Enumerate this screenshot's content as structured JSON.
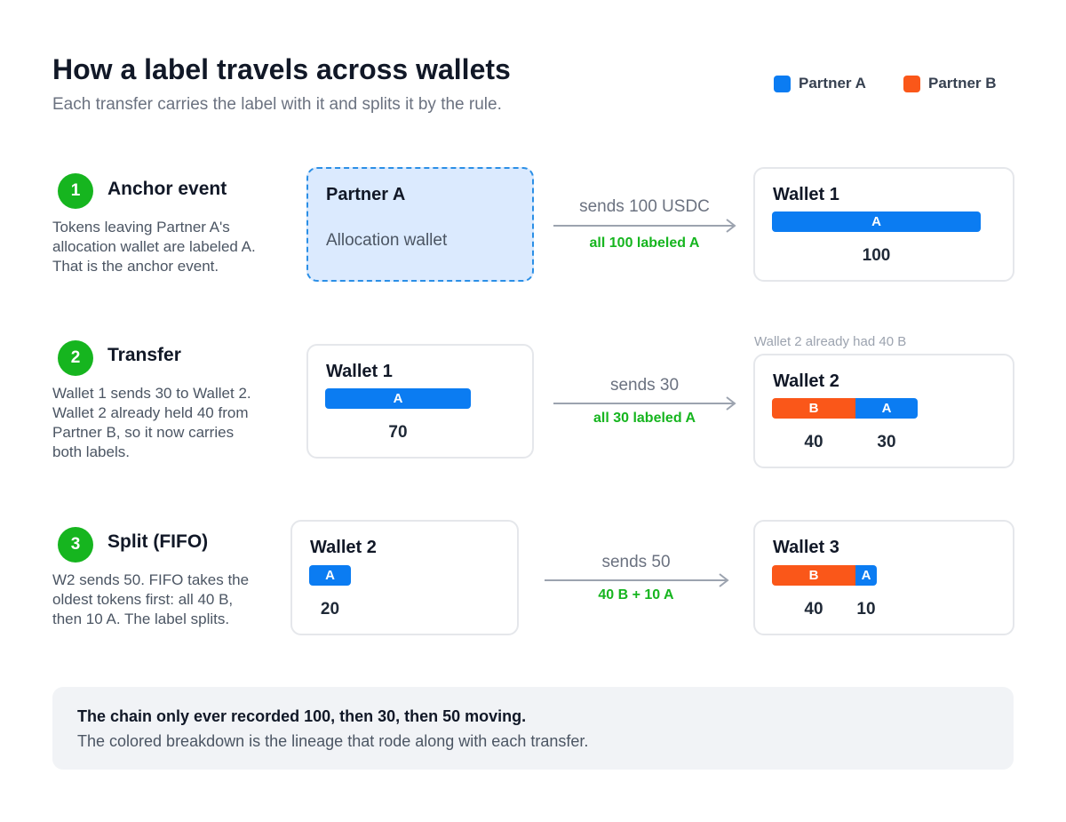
{
  "header": {
    "title": "How a label travels across wallets",
    "subtitle": "Each transfer carries the label with it and splits it by the rule."
  },
  "legend": [
    {
      "label": "Partner A",
      "color": "#0b7cf2"
    },
    {
      "label": "Partner B",
      "color": "#fa5719"
    }
  ],
  "colors": {
    "label_a": "#0b7cf2",
    "label_b": "#fa5719",
    "step_badge": "#16b51f",
    "arrow": "#9ca3af"
  },
  "steps": [
    {
      "number": "1",
      "title": "Anchor event",
      "description": [
        "Tokens leaving Partner A's",
        "allocation wallet are labeled A.",
        "That is the anchor event."
      ],
      "source": {
        "title": "Partner A",
        "subtitle": "Allocation wallet"
      },
      "transfer": {
        "label": "sends 100 USDC",
        "detail": "all 100 labeled A"
      },
      "destination": {
        "title": "Wallet 1",
        "segments": [
          {
            "label": "A",
            "amount": "100"
          }
        ]
      }
    },
    {
      "number": "2",
      "title": "Transfer",
      "description": [
        "Wallet 1 sends 30 to Wallet 2.",
        "Wallet 2 already held 40 from",
        "Partner B, so it now carries",
        "both labels."
      ],
      "source": {
        "title": "Wallet 1",
        "segments": [
          {
            "label": "A",
            "amount": "70"
          }
        ]
      },
      "transfer": {
        "label": "sends 30",
        "detail": "all 30 labeled A"
      },
      "destination_note": "Wallet 2 already had 40 B",
      "destination": {
        "title": "Wallet 2",
        "segments": [
          {
            "label": "B",
            "amount": "40"
          },
          {
            "label": "A",
            "amount": "30"
          }
        ]
      }
    },
    {
      "number": "3",
      "title": "Split (FIFO)",
      "description": [
        "W2 sends 50. FIFO takes the",
        "oldest tokens first: all 40 B,",
        "then 10 A. The label splits."
      ],
      "source": {
        "title": "Wallet 2",
        "segments": [
          {
            "label": "A",
            "amount": "20"
          }
        ]
      },
      "transfer": {
        "label": "sends 50",
        "detail": "40 B + 10 A"
      },
      "destination": {
        "title": "Wallet 3",
        "segments": [
          {
            "label": "B",
            "amount": "40"
          },
          {
            "label": "A",
            "amount": "10"
          }
        ]
      }
    }
  ],
  "footer": {
    "headline": "The chain only ever recorded 100, then 30, then 50 moving.",
    "text": "The colored breakdown is the lineage that rode along with each transfer."
  }
}
